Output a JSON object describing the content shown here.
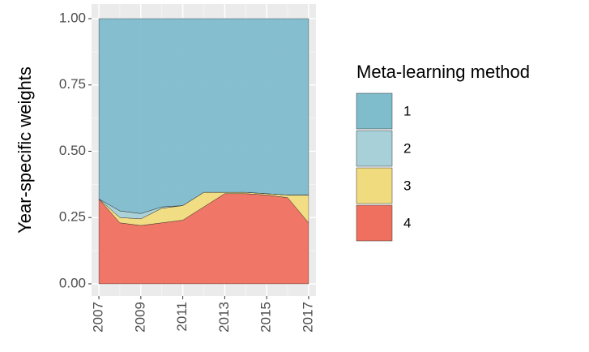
{
  "chart_data": {
    "type": "area",
    "y_label": "Year-specific weights",
    "legend_title": "Meta-learning method",
    "x": [
      2007,
      2008,
      2009,
      2010,
      2011,
      2012,
      2013,
      2014,
      2015,
      2016,
      2017
    ],
    "series": [
      {
        "name": "1",
        "color": "#7fbccc",
        "values": [
          0.68,
          0.725,
          0.735,
          0.71,
          0.705,
          0.655,
          0.655,
          0.655,
          0.66,
          0.665,
          0.665
        ]
      },
      {
        "name": "2",
        "color": "#a8d0d8",
        "values": [
          0,
          0.025,
          0.02,
          0.005,
          0,
          0,
          0,
          0,
          0,
          0,
          0
        ]
      },
      {
        "name": "3",
        "color": "#f0dc7e",
        "values": [
          0,
          0.02,
          0.025,
          0.055,
          0.055,
          0.055,
          0.005,
          0.005,
          0.005,
          0.01,
          0.105
        ]
      },
      {
        "name": "4",
        "color": "#f07060",
        "values": [
          0.32,
          0.23,
          0.22,
          0.23,
          0.24,
          0.29,
          0.34,
          0.34,
          0.335,
          0.325,
          0.23
        ]
      }
    ],
    "stacked": true,
    "xlim": [
      2006.65,
      2017.35
    ],
    "xticks": [
      2007,
      2009,
      2011,
      2013,
      2015,
      2017
    ],
    "ylim": [
      -0.046,
      1.055
    ],
    "yticks": [
      {
        "value": 0,
        "label": "0.00"
      },
      {
        "value": 0.25,
        "label": "0.25"
      },
      {
        "value": 0.5,
        "label": "0.50"
      },
      {
        "value": 0.75,
        "label": "0.75"
      },
      {
        "value": 1,
        "label": "1.00"
      }
    ],
    "grid": true
  }
}
